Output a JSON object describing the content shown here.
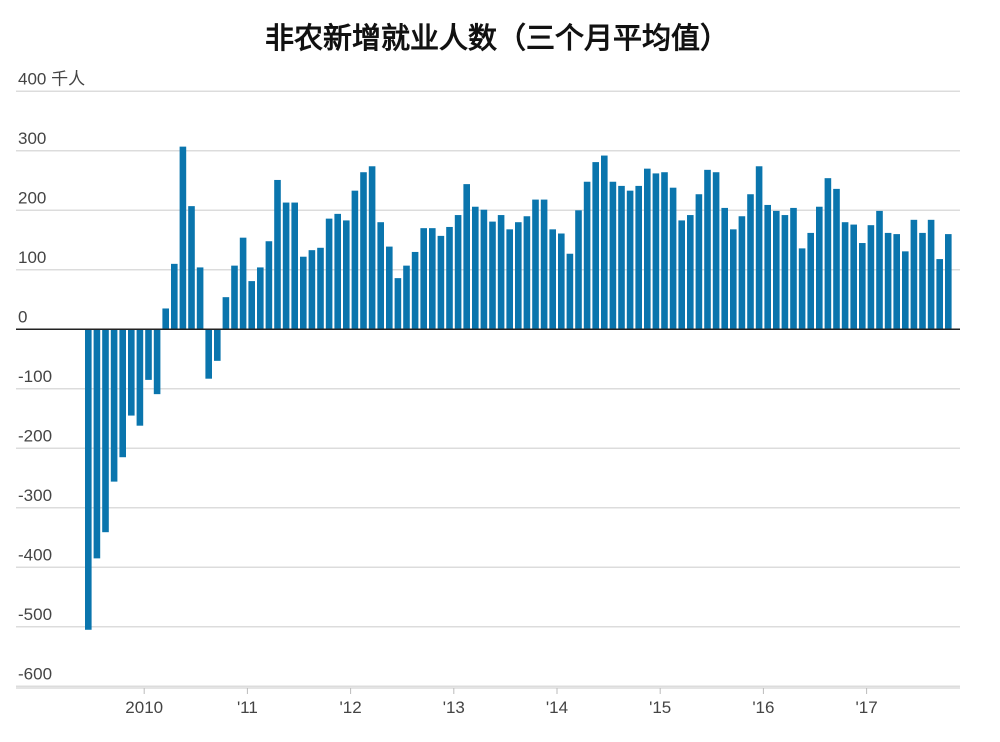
{
  "chart_data": {
    "type": "bar",
    "title": "非农新增就业人数（三个月平均值）",
    "ylabel_unit": "千人",
    "xlabel": "",
    "ylim": [
      -600,
      400
    ],
    "yticks": [
      400,
      300,
      200,
      100,
      0,
      -100,
      -200,
      -300,
      -400,
      -500,
      -600
    ],
    "ytick_labels": [
      "400",
      "300",
      "200",
      "100",
      "0",
      "-100",
      "-200",
      "-300",
      "-400",
      "-500",
      "-600"
    ],
    "xtick_labels": [
      "2010",
      "'11",
      "'12",
      "'13",
      "'14",
      "'15",
      "'16",
      "'17"
    ],
    "start": "2009-06",
    "frequency": "monthly",
    "grid": true,
    "color": "#0a75ad",
    "values": [
      -505,
      -385,
      -341,
      -256,
      -215,
      -145,
      -162,
      -85,
      -109,
      35,
      110,
      307,
      207,
      104,
      -83,
      -53,
      54,
      107,
      154,
      81,
      104,
      148,
      251,
      213,
      213,
      122,
      133,
      137,
      186,
      194,
      183,
      233,
      264,
      274,
      180,
      139,
      86,
      107,
      130,
      170,
      170,
      157,
      172,
      192,
      244,
      206,
      201,
      181,
      192,
      168,
      180,
      190,
      218,
      218,
      168,
      161,
      127,
      200,
      248,
      281,
      292,
      248,
      241,
      233,
      241,
      270,
      262,
      264,
      238,
      183,
      192,
      227,
      268,
      264,
      204,
      168,
      190,
      227,
      274,
      209,
      199,
      192,
      204,
      136,
      162,
      206,
      254,
      236,
      180,
      176,
      145,
      175,
      199,
      162,
      160,
      131,
      184,
      162,
      184,
      118,
      160
    ]
  }
}
